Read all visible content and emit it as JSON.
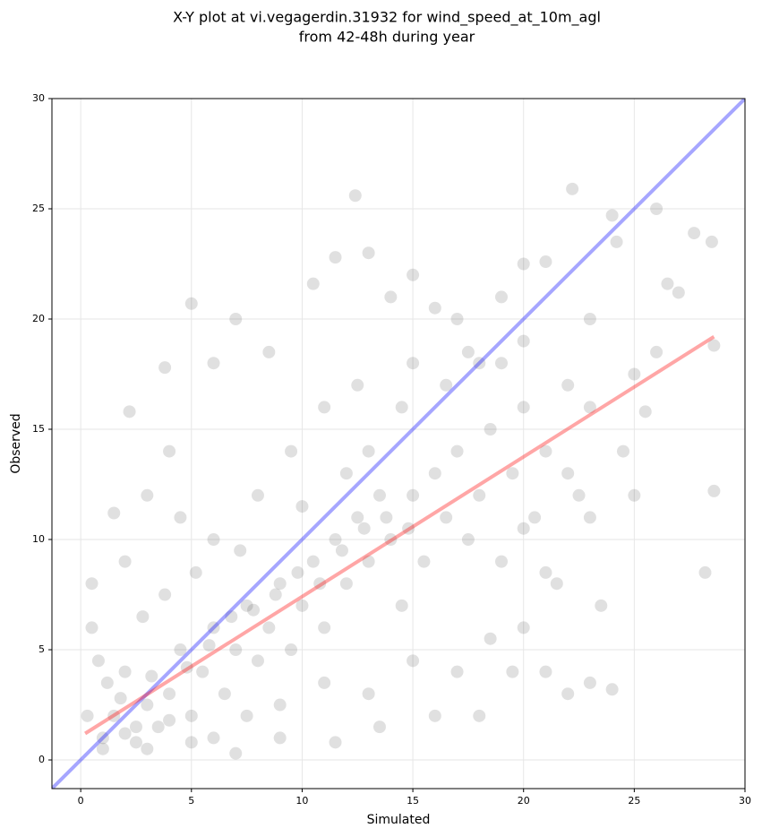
{
  "chart_data": {
    "type": "scatter",
    "title": "X-Y plot at vi.vegagerdin.31932 for wind_speed_at_10m_agl",
    "subtitle": "from 42-48h during year",
    "xlabel": "Simulated",
    "ylabel": "Observed",
    "xlim": [
      -1.3,
      30
    ],
    "ylim": [
      -1.3,
      30
    ],
    "xticks": [
      0,
      5,
      10,
      15,
      20,
      25,
      30
    ],
    "yticks": [
      0,
      5,
      10,
      15,
      20,
      25,
      30
    ],
    "grid": true,
    "color": "#000000",
    "x": [
      1,
      1.5,
      2,
      2.5,
      3,
      1.2,
      2,
      3.5,
      4,
      4.5,
      5,
      5.5,
      6,
      6.5,
      7,
      7.5,
      8,
      8.5,
      9,
      9.5,
      10,
      10.5,
      11,
      11.5,
      12,
      12.5,
      13,
      13.5,
      14,
      14.5,
      15,
      15.5,
      16,
      16.5,
      17,
      17.5,
      18,
      18.5,
      19,
      19.5,
      20,
      20.5,
      21,
      21.5,
      22,
      22.5,
      23,
      24,
      24.2,
      25.5,
      26.5,
      27,
      27.7,
      28.5,
      28.6,
      28.6,
      28.2,
      26,
      22.2,
      12.4,
      7,
      3.8,
      5,
      2.2,
      1.5,
      0.5,
      0.5,
      0.3,
      1,
      3,
      5,
      7,
      9,
      11.5,
      13.5,
      16,
      18,
      19.5,
      21,
      22,
      23,
      24,
      23.5,
      21,
      20,
      18,
      17,
      15,
      14,
      16,
      19,
      20,
      21,
      10.5,
      11.5,
      13,
      8.5,
      6,
      4,
      3,
      2,
      4.5,
      6,
      8,
      9.5,
      11,
      12.5,
      13,
      14.5,
      15,
      16.5,
      17.5,
      19,
      20,
      22,
      23,
      24.5,
      25,
      26,
      25,
      23,
      20,
      18.5,
      17,
      15,
      13,
      11,
      9,
      7.5,
      6,
      4,
      2.5,
      1.8,
      3.2,
      4.8,
      5.8,
      6.8,
      7.8,
      8.8,
      9.8,
      10.8,
      11.8,
      12.8,
      13.8,
      14.8,
      0.8,
      2.8,
      3.8,
      5.2,
      7.2,
      10,
      12
    ],
    "y": [
      1,
      2,
      1.2,
      0.8,
      2.5,
      3.5,
      4,
      1.5,
      3,
      5,
      2,
      4,
      6,
      3,
      5,
      7,
      4.5,
      6,
      8,
      5,
      7,
      9,
      6,
      10,
      8,
      11,
      9,
      12,
      10,
      7,
      12,
      9,
      13,
      11,
      14,
      10,
      12,
      15,
      9,
      13,
      16,
      11,
      14,
      8,
      17,
      12,
      20,
      24.7,
      23.5,
      15.8,
      21.6,
      21.2,
      23.9,
      23.5,
      18.8,
      12.2,
      8.5,
      25,
      25.9,
      25.6,
      20,
      17.8,
      20.7,
      15.8,
      11.2,
      8,
      6,
      2,
      0.5,
      0.5,
      0.8,
      0.3,
      1,
      0.8,
      1.5,
      2,
      2,
      4,
      4,
      3,
      3.5,
      3.2,
      7,
      8.5,
      10.5,
      18,
      20,
      22,
      21,
      20.5,
      21,
      22.5,
      22.6,
      21.6,
      22.8,
      23,
      18.5,
      18,
      14,
      12,
      9,
      11,
      10,
      12,
      14,
      16,
      17,
      14,
      16,
      18,
      17,
      18.5,
      18,
      19,
      13,
      16,
      14,
      17.5,
      18.5,
      12,
      11,
      6,
      5.5,
      4,
      4.5,
      3,
      3.5,
      2.5,
      2,
      1,
      1.8,
      1.5,
      2.8,
      3.8,
      4.2,
      5.2,
      6.5,
      6.8,
      7.5,
      8.5,
      8,
      9.5,
      10.5,
      11,
      10.5,
      4.5,
      6.5,
      7.5,
      8.5,
      9.5,
      11.5,
      13
    ],
    "lines": [
      {
        "color": "#0000ff",
        "x": [
          -1.3,
          30
        ],
        "y": [
          -1.3,
          30
        ]
      },
      {
        "color": "#ff0000",
        "x": [
          0.2,
          28.6
        ],
        "y": [
          1.2,
          19.2
        ]
      }
    ]
  }
}
